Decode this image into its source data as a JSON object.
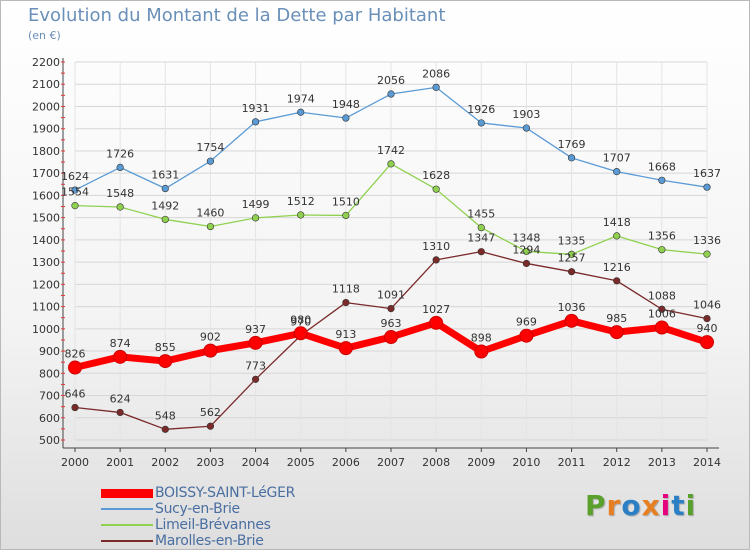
{
  "title": "Evolution du Montant de la Dette par Habitant",
  "subtitle": "(en €)",
  "logo": {
    "text": "Proxiti",
    "colors": [
      "#5aa02c",
      "#e67e22",
      "#2b7fc5",
      "#e67e22",
      "#e6007e",
      "#2b7fc5",
      "#5aa02c"
    ]
  },
  "chart_data": {
    "type": "line",
    "x": [
      "2000",
      "2001",
      "2002",
      "2003",
      "2004",
      "2005",
      "2006",
      "2007",
      "2008",
      "2009",
      "2010",
      "2011",
      "2012",
      "2013",
      "2014"
    ],
    "ylim": [
      500,
      2200
    ],
    "yticks": [
      500,
      600,
      700,
      800,
      900,
      1000,
      1100,
      1200,
      1300,
      1400,
      1500,
      1600,
      1700,
      1800,
      1900,
      2000,
      2100,
      2200
    ],
    "grid": true,
    "legend": "bottom-left",
    "series": [
      {
        "name": "BOISSY-SAINT-LéGER",
        "color": "#ff0000",
        "values": [
          826,
          874,
          855,
          902,
          937,
          980,
          913,
          963,
          1027,
          898,
          969,
          1036,
          985,
          1006,
          940
        ]
      },
      {
        "name": "Sucy-en-Brie",
        "color": "#5b9bd5",
        "values": [
          1624,
          1726,
          1631,
          1754,
          1931,
          1974,
          1948,
          2056,
          2086,
          1926,
          1903,
          1769,
          1707,
          1668,
          1637
        ]
      },
      {
        "name": "Limeil-Brévannes",
        "color": "#8fd14f",
        "values": [
          1554,
          1548,
          1492,
          1460,
          1499,
          1512,
          1510,
          1742,
          1628,
          1455,
          1348,
          1335,
          1418,
          1356,
          1336
        ]
      },
      {
        "name": "Marolles-en-Brie",
        "color": "#7b2a2a",
        "values": [
          646,
          624,
          548,
          562,
          773,
          970,
          1118,
          1091,
          1310,
          1347,
          1294,
          1257,
          1216,
          1088,
          1046
        ]
      }
    ]
  }
}
